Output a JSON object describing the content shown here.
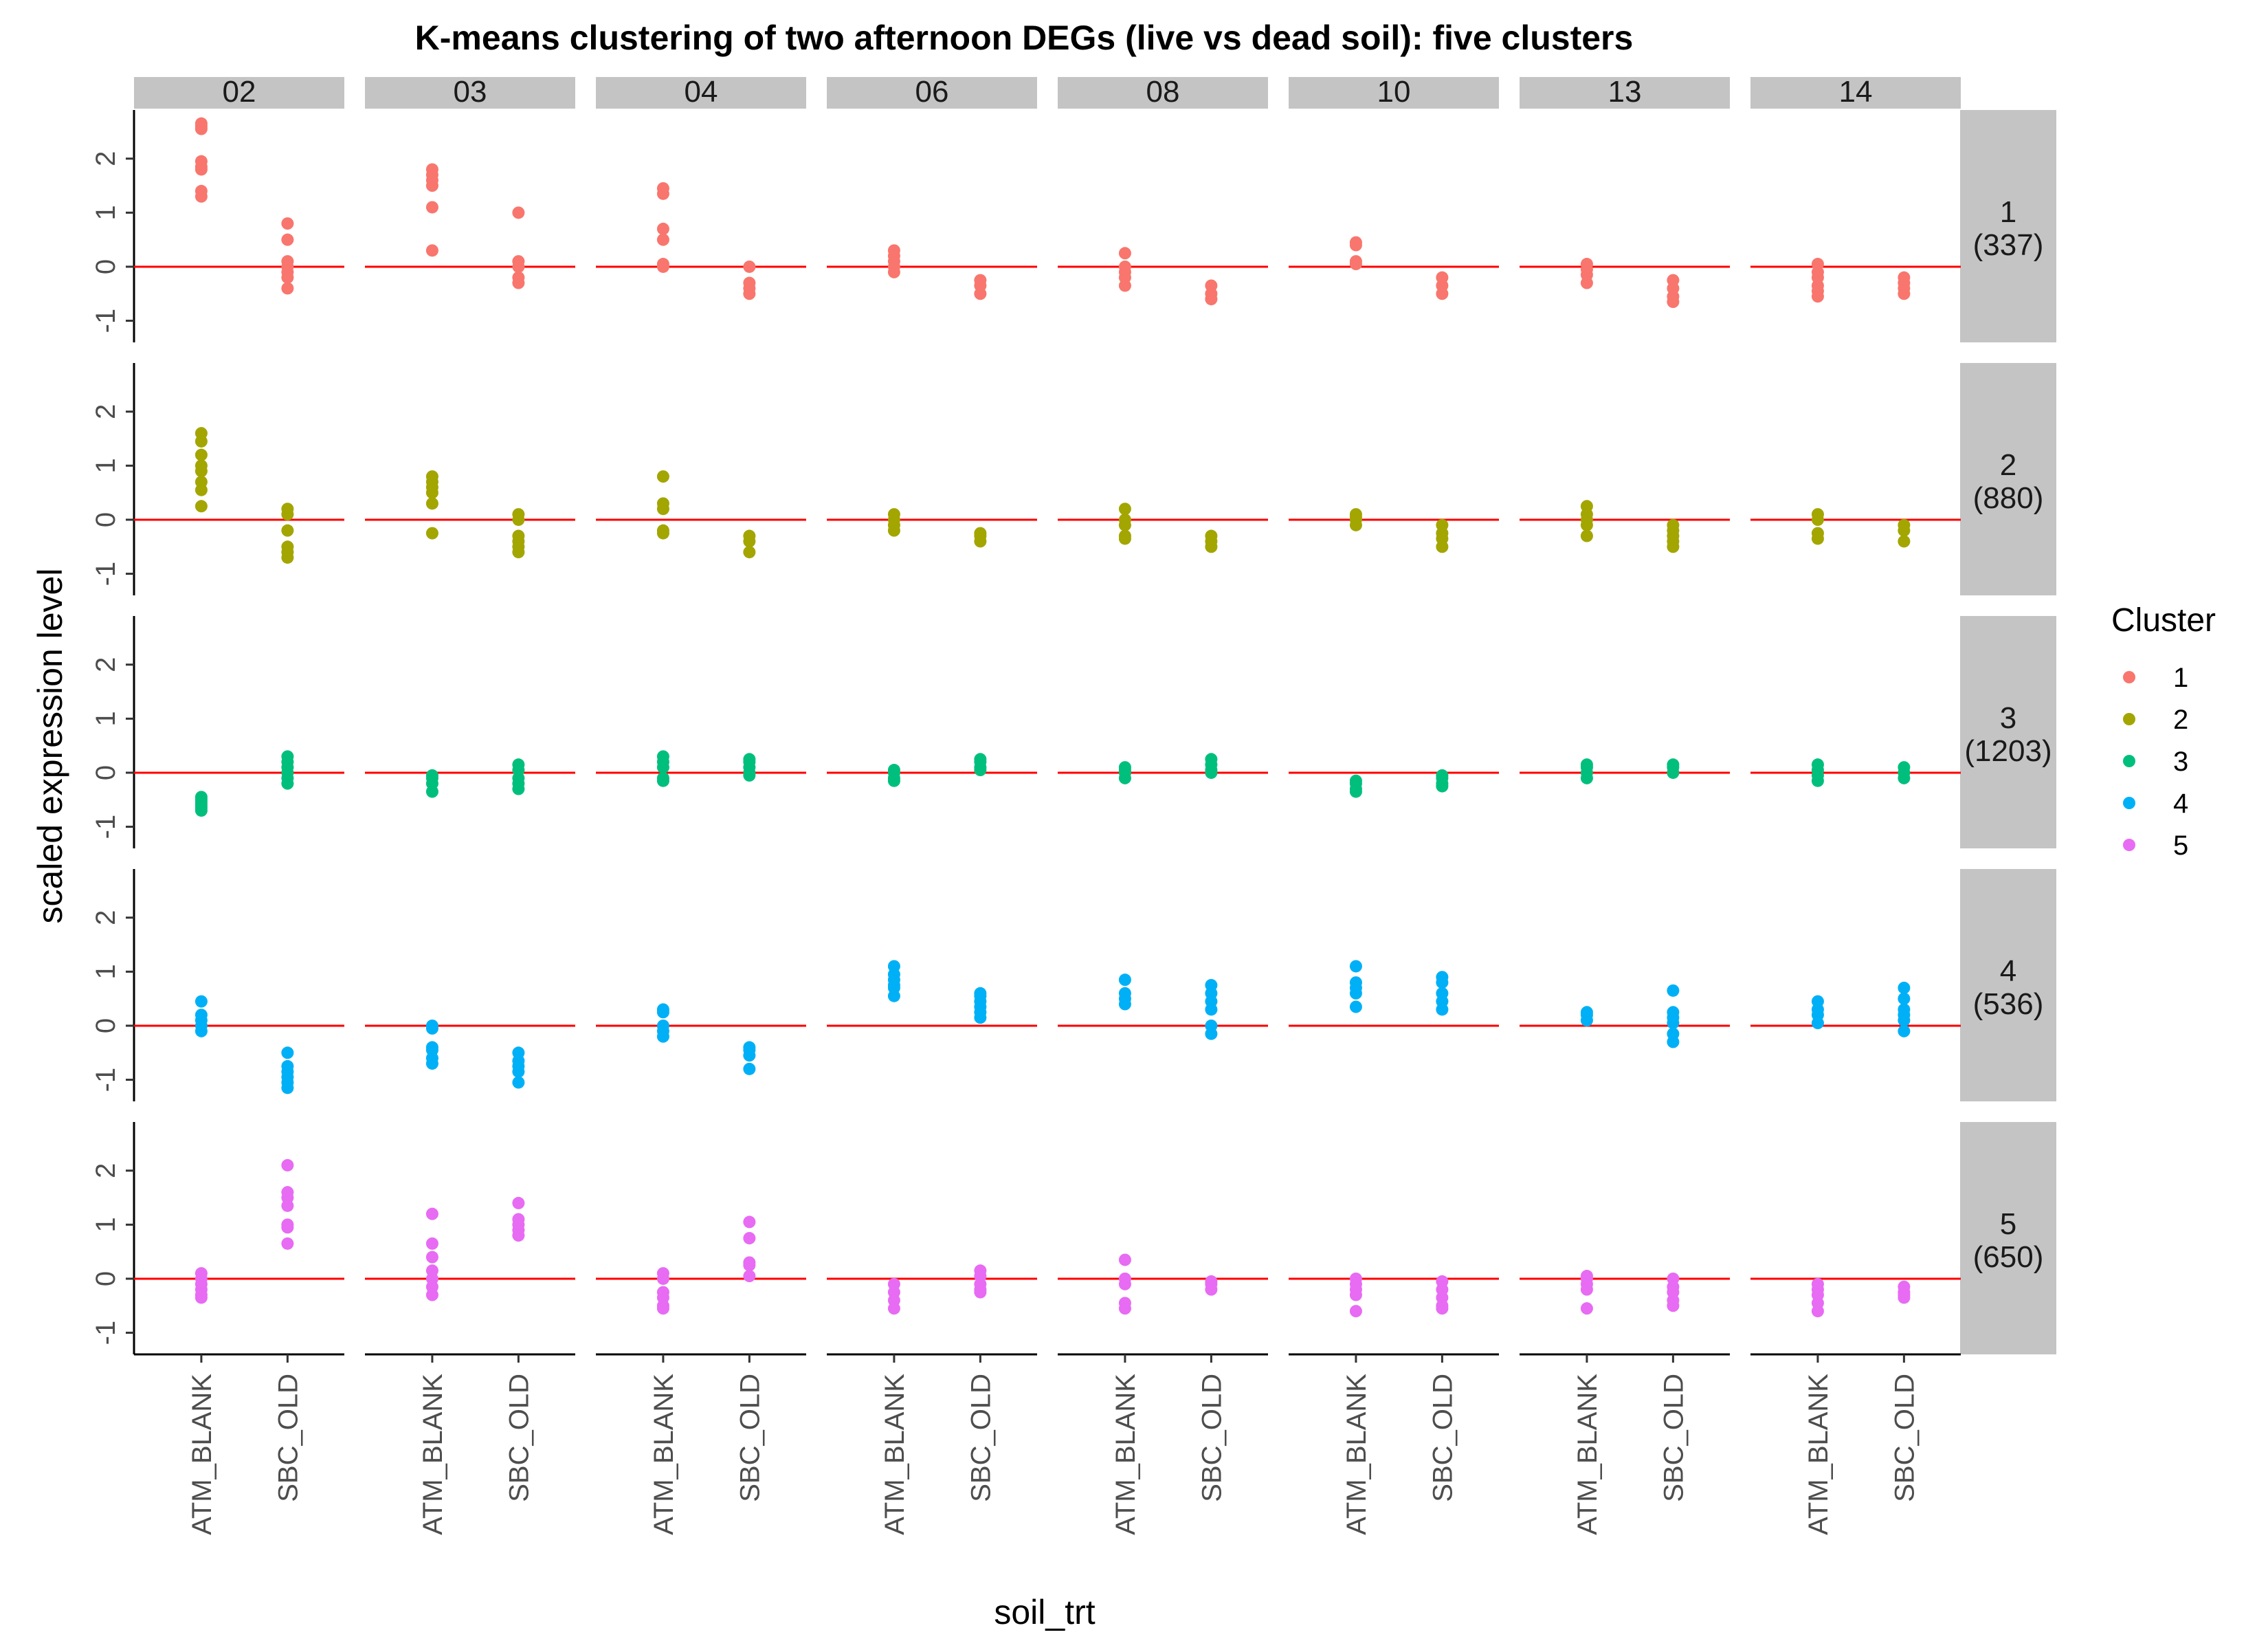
{
  "chart_data": {
    "type": "scatter",
    "title": "K-means clustering of two afternoon DEGs (live vs dead soil): five clusters",
    "xlabel": "soil_trt",
    "ylabel": "scaled expression level",
    "ylim": [
      -1.4,
      2.9
    ],
    "y_ticks": [
      "-1",
      "0",
      "1",
      "2"
    ],
    "x_categories": [
      "ATM_BLANK",
      "SBC_OLD"
    ],
    "reference_line_y": 0,
    "reference_line_color": "#ff0000",
    "column_facets": [
      "02",
      "03",
      "04",
      "06",
      "08",
      "10",
      "13",
      "14"
    ],
    "row_facets": [
      {
        "cluster": "1",
        "count": "(337)"
      },
      {
        "cluster": "2",
        "count": "(880)"
      },
      {
        "cluster": "3",
        "count": "(1203)"
      },
      {
        "cluster": "4",
        "count": "(536)"
      },
      {
        "cluster": "5",
        "count": "(650)"
      }
    ],
    "legend": {
      "title": "Cluster",
      "position": "right",
      "entries": [
        {
          "label": "1",
          "color": "#F8766D"
        },
        {
          "label": "2",
          "color": "#A3A500"
        },
        {
          "label": "3",
          "color": "#00BF7D"
        },
        {
          "label": "4",
          "color": "#00B0F6"
        },
        {
          "label": "5",
          "color": "#E76BF3"
        }
      ]
    },
    "grid": false,
    "points": {
      "1": [
        [
          [
            2.65,
            2.6,
            2.55,
            1.95,
            1.85,
            1.8,
            1.4,
            1.3
          ],
          [
            0.8,
            0.5,
            0.1,
            0,
            -0.1,
            -0.2,
            -0.4
          ]
        ],
        [
          [
            1.8,
            1.7,
            1.6,
            1.5,
            1.1,
            0.3
          ],
          [
            1.0,
            0.1,
            0.0,
            -0.2,
            -0.3
          ]
        ],
        [
          [
            1.45,
            1.35,
            0.7,
            0.5,
            0.05,
            0.0
          ],
          [
            0.0,
            -0.3,
            -0.4,
            -0.5
          ]
        ],
        [
          [
            0.3,
            0.2,
            0.1,
            0.0,
            -0.1
          ],
          [
            -0.25,
            -0.35,
            -0.5
          ]
        ],
        [
          [
            0.25,
            0.0,
            -0.1,
            -0.2,
            -0.35
          ],
          [
            -0.35,
            -0.5,
            -0.6
          ]
        ],
        [
          [
            0.45,
            0.4,
            0.1,
            0.05
          ],
          [
            -0.2,
            -0.35,
            -0.5
          ]
        ],
        [
          [
            0.05,
            -0.05,
            -0.15,
            -0.3
          ],
          [
            -0.25,
            -0.4,
            -0.55,
            -0.65
          ]
        ],
        [
          [
            0.05,
            -0.1,
            -0.2,
            -0.35,
            -0.45,
            -0.55
          ],
          [
            -0.2,
            -0.3,
            -0.4,
            -0.5
          ]
        ]
      ],
      "2": [
        [
          [
            1.6,
            1.45,
            1.2,
            1.0,
            0.9,
            0.7,
            0.55,
            0.25
          ],
          [
            0.2,
            0.1,
            -0.2,
            -0.5,
            -0.6,
            -0.7
          ]
        ],
        [
          [
            0.8,
            0.7,
            0.6,
            0.5,
            0.3,
            -0.25
          ],
          [
            0.1,
            0.0,
            -0.3,
            -0.4,
            -0.5,
            -0.6
          ]
        ],
        [
          [
            0.8,
            0.3,
            0.2,
            -0.2,
            -0.25
          ],
          [
            -0.3,
            -0.4,
            -0.6
          ]
        ],
        [
          [
            0.1,
            0.0,
            -0.1,
            -0.2
          ],
          [
            -0.25,
            -0.3,
            -0.4
          ]
        ],
        [
          [
            0.2,
            0.0,
            -0.1,
            -0.3,
            -0.35
          ],
          [
            -0.3,
            -0.4,
            -0.5
          ]
        ],
        [
          [
            0.1,
            0.05,
            0.0,
            -0.1
          ],
          [
            -0.1,
            -0.25,
            -0.35,
            -0.5
          ]
        ],
        [
          [
            0.25,
            0.1,
            0.0,
            -0.1,
            -0.3
          ],
          [
            -0.1,
            -0.2,
            -0.3,
            -0.4,
            -0.5
          ]
        ],
        [
          [
            0.1,
            0.0,
            -0.25,
            -0.35
          ],
          [
            -0.1,
            -0.2,
            -0.4
          ]
        ]
      ],
      "3": [
        [
          [
            -0.45,
            -0.5,
            -0.55,
            -0.6,
            -0.65,
            -0.7
          ],
          [
            0.3,
            0.2,
            0.1,
            0.0,
            -0.1,
            -0.2
          ]
        ],
        [
          [
            -0.05,
            -0.1,
            -0.2,
            -0.35
          ],
          [
            0.15,
            0.05,
            -0.1,
            -0.2,
            -0.3
          ]
        ],
        [
          [
            0.3,
            0.2,
            0.1,
            -0.1,
            -0.15
          ],
          [
            0.25,
            0.2,
            0.1,
            0.0,
            -0.05
          ]
        ],
        [
          [
            0.05,
            0.0,
            -0.1,
            -0.15
          ],
          [
            0.25,
            0.2,
            0.1,
            0.05
          ]
        ],
        [
          [
            0.1,
            0.05,
            0.0,
            -0.1
          ],
          [
            0.25,
            0.15,
            0.05,
            0.0
          ]
        ],
        [
          [
            -0.15,
            -0.2,
            -0.3,
            -0.35
          ],
          [
            -0.05,
            -0.1,
            -0.2,
            -0.25
          ]
        ],
        [
          [
            0.15,
            0.1,
            0.0,
            -0.1
          ],
          [
            0.15,
            0.1,
            0.0
          ]
        ],
        [
          [
            0.15,
            0.05,
            -0.05,
            -0.15
          ],
          [
            0.1,
            0.0,
            -0.1
          ]
        ]
      ],
      "4": [
        [
          [
            0.45,
            0.2,
            0.1,
            0.0,
            -0.1
          ],
          [
            -0.5,
            -0.75,
            -0.85,
            -0.95,
            -1.05,
            -1.15
          ]
        ],
        [
          [
            0.0,
            -0.05,
            -0.4,
            -0.45,
            -0.6,
            -0.7
          ],
          [
            -0.5,
            -0.65,
            -0.75,
            -0.85,
            -1.05
          ]
        ],
        [
          [
            0.3,
            0.25,
            0.0,
            -0.1,
            -0.2
          ],
          [
            -0.4,
            -0.45,
            -0.55,
            -0.8
          ]
        ],
        [
          [
            1.1,
            0.95,
            0.85,
            0.75,
            0.7,
            0.55
          ],
          [
            0.6,
            0.55,
            0.45,
            0.35,
            0.25,
            0.15
          ]
        ],
        [
          [
            0.85,
            0.6,
            0.5,
            0.4
          ],
          [
            0.75,
            0.6,
            0.45,
            0.3,
            0.0,
            -0.15
          ]
        ],
        [
          [
            1.1,
            0.8,
            0.7,
            0.6,
            0.35
          ],
          [
            0.9,
            0.8,
            0.6,
            0.45,
            0.3
          ]
        ],
        [
          [
            0.25,
            0.2,
            0.1
          ],
          [
            0.65,
            0.25,
            0.15,
            0.05,
            -0.15,
            -0.3
          ]
        ],
        [
          [
            0.45,
            0.3,
            0.2,
            0.05
          ],
          [
            0.7,
            0.5,
            0.3,
            0.2,
            0.1,
            -0.1
          ]
        ]
      ],
      "5": [
        [
          [
            0.1,
            0.0,
            -0.1,
            -0.2,
            -0.3,
            -0.35
          ],
          [
            2.1,
            1.6,
            1.5,
            1.35,
            1.0,
            0.95,
            0.65
          ]
        ],
        [
          [
            1.2,
            0.65,
            0.4,
            0.15,
            0.0,
            -0.15,
            -0.3
          ],
          [
            1.4,
            1.1,
            1.0,
            0.9,
            0.8
          ]
        ],
        [
          [
            0.1,
            0.0,
            -0.25,
            -0.35,
            -0.5,
            -0.55
          ],
          [
            1.05,
            0.75,
            0.3,
            0.25,
            0.05
          ]
        ],
        [
          [
            -0.1,
            -0.25,
            -0.4,
            -0.55
          ],
          [
            0.15,
            0.05,
            -0.1,
            -0.2,
            -0.25
          ]
        ],
        [
          [
            0.35,
            0.0,
            -0.1,
            -0.45,
            -0.55
          ],
          [
            -0.05,
            -0.1,
            -0.2
          ]
        ],
        [
          [
            0.0,
            -0.1,
            -0.2,
            -0.3,
            -0.6
          ],
          [
            -0.05,
            -0.2,
            -0.35,
            -0.5,
            -0.55
          ]
        ],
        [
          [
            0.05,
            0.0,
            -0.1,
            -0.2,
            -0.55
          ],
          [
            0.0,
            -0.15,
            -0.25,
            -0.4,
            -0.5
          ]
        ],
        [
          [
            -0.1,
            -0.2,
            -0.3,
            -0.45,
            -0.6
          ],
          [
            -0.15,
            -0.25,
            -0.3,
            -0.35
          ]
        ]
      ]
    }
  }
}
